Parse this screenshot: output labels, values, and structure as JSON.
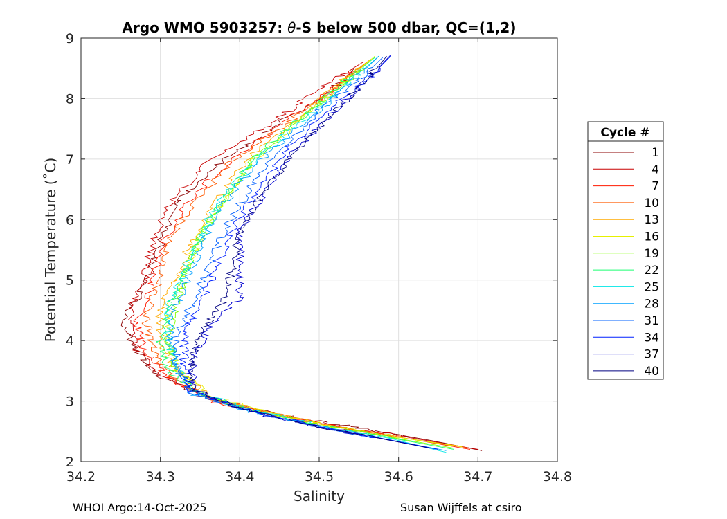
{
  "chart_data": {
    "type": "line",
    "title": {
      "prefix": "Argo WMO 5903257: ",
      "theta": "θ",
      "suffix": "-S below 500 dbar,  QC=(1,2)"
    },
    "xlabel": "Salinity",
    "ylabel": "Potential Temperature (˚C)",
    "xlim": [
      34.2,
      34.8
    ],
    "ylim": [
      2,
      9
    ],
    "xticks": [
      34.2,
      34.3,
      34.4,
      34.5,
      34.6,
      34.7,
      34.8
    ],
    "xtick_labels": [
      "34.2",
      "34.3",
      "34.4",
      "34.5",
      "34.6",
      "34.7",
      "34.8"
    ],
    "yticks": [
      2,
      3,
      4,
      5,
      6,
      7,
      8,
      9
    ],
    "ytick_labels": [
      "2",
      "3",
      "4",
      "5",
      "6",
      "7",
      "8",
      "9"
    ],
    "grid": true,
    "legend_title": "Cycle #",
    "legend_position": "right",
    "series": [
      {
        "name": "1",
        "color": "#8b0000",
        "points": [
          [
            34.705,
            2.18
          ],
          [
            34.64,
            2.35
          ],
          [
            34.55,
            2.55
          ],
          [
            34.46,
            2.75
          ],
          [
            34.38,
            2.98
          ],
          [
            34.3,
            3.4
          ],
          [
            34.27,
            3.8
          ],
          [
            34.25,
            4.3
          ],
          [
            34.28,
            4.9
          ],
          [
            34.3,
            5.6
          ],
          [
            34.32,
            6.3
          ],
          [
            34.37,
            6.9
          ],
          [
            34.45,
            7.6
          ],
          [
            34.52,
            8.2
          ],
          [
            34.565,
            8.65
          ]
        ]
      },
      {
        "name": "4",
        "color": "#c80000",
        "points": [
          [
            34.7,
            2.2
          ],
          [
            34.63,
            2.36
          ],
          [
            34.54,
            2.55
          ],
          [
            34.45,
            2.76
          ],
          [
            34.37,
            3.0
          ],
          [
            34.3,
            3.45
          ],
          [
            34.27,
            3.85
          ],
          [
            34.26,
            4.4
          ],
          [
            34.28,
            5.0
          ],
          [
            34.29,
            5.6
          ],
          [
            34.31,
            6.25
          ],
          [
            34.36,
            6.95
          ],
          [
            34.44,
            7.6
          ],
          [
            34.5,
            8.15
          ],
          [
            34.555,
            8.6
          ]
        ]
      },
      {
        "name": "7",
        "color": "#ff1a00",
        "points": [
          [
            34.69,
            2.2
          ],
          [
            34.62,
            2.36
          ],
          [
            34.53,
            2.56
          ],
          [
            34.44,
            2.78
          ],
          [
            34.36,
            3.02
          ],
          [
            34.31,
            3.4
          ],
          [
            34.28,
            3.8
          ],
          [
            34.27,
            4.3
          ],
          [
            34.29,
            4.9
          ],
          [
            34.3,
            5.5
          ],
          [
            34.33,
            6.2
          ],
          [
            34.38,
            6.9
          ],
          [
            34.45,
            7.55
          ],
          [
            34.51,
            8.1
          ],
          [
            34.56,
            8.6
          ]
        ]
      },
      {
        "name": "10",
        "color": "#ff5a00",
        "points": [
          [
            34.69,
            2.22
          ],
          [
            34.61,
            2.38
          ],
          [
            34.52,
            2.58
          ],
          [
            34.44,
            2.8
          ],
          [
            34.36,
            3.05
          ],
          [
            34.31,
            3.45
          ],
          [
            34.29,
            3.9
          ],
          [
            34.28,
            4.4
          ],
          [
            34.3,
            5.0
          ],
          [
            34.31,
            5.6
          ],
          [
            34.34,
            6.25
          ],
          [
            34.39,
            6.95
          ],
          [
            34.46,
            7.6
          ],
          [
            34.52,
            8.15
          ],
          [
            34.56,
            8.6
          ]
        ]
      },
      {
        "name": "13",
        "color": "#ffaa00",
        "points": [
          [
            34.68,
            2.25
          ],
          [
            34.6,
            2.4
          ],
          [
            34.51,
            2.6
          ],
          [
            34.43,
            2.82
          ],
          [
            34.36,
            3.08
          ],
          [
            34.32,
            3.5
          ],
          [
            34.3,
            3.95
          ],
          [
            34.3,
            4.5
          ],
          [
            34.32,
            5.05
          ],
          [
            34.34,
            5.65
          ],
          [
            34.37,
            6.3
          ],
          [
            34.41,
            7.0
          ],
          [
            34.47,
            7.65
          ],
          [
            34.52,
            8.2
          ],
          [
            34.565,
            8.65
          ]
        ]
      },
      {
        "name": "16",
        "color": "#e6f000",
        "points": [
          [
            34.68,
            2.24
          ],
          [
            34.6,
            2.4
          ],
          [
            34.51,
            2.61
          ],
          [
            34.43,
            2.83
          ],
          [
            34.36,
            3.1
          ],
          [
            34.32,
            3.55
          ],
          [
            34.31,
            4.0
          ],
          [
            34.31,
            4.5
          ],
          [
            34.33,
            5.1
          ],
          [
            34.35,
            5.7
          ],
          [
            34.38,
            6.35
          ],
          [
            34.42,
            7.0
          ],
          [
            34.48,
            7.7
          ],
          [
            34.53,
            8.25
          ],
          [
            34.57,
            8.7
          ]
        ]
      },
      {
        "name": "19",
        "color": "#80ff00",
        "points": [
          [
            34.67,
            2.22
          ],
          [
            34.59,
            2.4
          ],
          [
            34.5,
            2.61
          ],
          [
            34.42,
            2.84
          ],
          [
            34.35,
            3.12
          ],
          [
            34.32,
            3.55
          ],
          [
            34.31,
            4.05
          ],
          [
            34.32,
            4.55
          ],
          [
            34.33,
            5.1
          ],
          [
            34.35,
            5.7
          ],
          [
            34.38,
            6.35
          ],
          [
            34.42,
            7.05
          ],
          [
            34.48,
            7.7
          ],
          [
            34.53,
            8.25
          ],
          [
            34.57,
            8.68
          ]
        ]
      },
      {
        "name": "22",
        "color": "#1aff70",
        "points": [
          [
            34.67,
            2.2
          ],
          [
            34.59,
            2.39
          ],
          [
            34.5,
            2.6
          ],
          [
            34.42,
            2.83
          ],
          [
            34.35,
            3.1
          ],
          [
            34.31,
            3.5
          ],
          [
            34.3,
            4.0
          ],
          [
            34.31,
            4.55
          ],
          [
            34.33,
            5.1
          ],
          [
            34.35,
            5.7
          ],
          [
            34.38,
            6.35
          ],
          [
            34.42,
            7.05
          ],
          [
            34.48,
            7.7
          ],
          [
            34.53,
            8.25
          ],
          [
            34.57,
            8.68
          ]
        ]
      },
      {
        "name": "25",
        "color": "#00e6e6",
        "points": [
          [
            34.66,
            2.15
          ],
          [
            34.59,
            2.38
          ],
          [
            34.5,
            2.6
          ],
          [
            34.42,
            2.84
          ],
          [
            34.35,
            3.12
          ],
          [
            34.32,
            3.55
          ],
          [
            34.31,
            4.05
          ],
          [
            34.31,
            4.6
          ],
          [
            34.33,
            5.15
          ],
          [
            34.35,
            5.75
          ],
          [
            34.38,
            6.4
          ],
          [
            34.43,
            7.1
          ],
          [
            34.49,
            7.75
          ],
          [
            34.54,
            8.3
          ],
          [
            34.575,
            8.7
          ]
        ]
      },
      {
        "name": "28",
        "color": "#00a0ff",
        "points": [
          [
            34.66,
            2.18
          ],
          [
            34.58,
            2.38
          ],
          [
            34.49,
            2.6
          ],
          [
            34.41,
            2.84
          ],
          [
            34.34,
            3.12
          ],
          [
            34.32,
            3.55
          ],
          [
            34.31,
            4.05
          ],
          [
            34.32,
            4.6
          ],
          [
            34.34,
            5.2
          ],
          [
            34.36,
            5.8
          ],
          [
            34.39,
            6.45
          ],
          [
            34.44,
            7.15
          ],
          [
            34.5,
            7.8
          ],
          [
            34.545,
            8.32
          ],
          [
            34.575,
            8.7
          ]
        ]
      },
      {
        "name": "31",
        "color": "#0060ff",
        "points": [
          [
            34.65,
            2.2
          ],
          [
            34.58,
            2.38
          ],
          [
            34.49,
            2.6
          ],
          [
            34.41,
            2.85
          ],
          [
            34.34,
            3.14
          ],
          [
            34.32,
            3.6
          ],
          [
            34.32,
            4.1
          ],
          [
            34.34,
            4.6
          ],
          [
            34.36,
            5.2
          ],
          [
            34.38,
            5.8
          ],
          [
            34.41,
            6.45
          ],
          [
            34.45,
            7.15
          ],
          [
            34.5,
            7.8
          ],
          [
            34.55,
            8.3
          ],
          [
            34.58,
            8.68
          ]
        ]
      },
      {
        "name": "34",
        "color": "#0020ff",
        "points": [
          [
            34.65,
            2.2
          ],
          [
            34.58,
            2.38
          ],
          [
            34.49,
            2.6
          ],
          [
            34.41,
            2.86
          ],
          [
            34.34,
            3.15
          ],
          [
            34.33,
            3.6
          ],
          [
            34.33,
            4.1
          ],
          [
            34.35,
            4.6
          ],
          [
            34.37,
            5.2
          ],
          [
            34.39,
            5.8
          ],
          [
            34.42,
            6.45
          ],
          [
            34.46,
            7.15
          ],
          [
            34.51,
            7.8
          ],
          [
            34.56,
            8.3
          ],
          [
            34.59,
            8.7
          ]
        ]
      },
      {
        "name": "37",
        "color": "#0000d0",
        "points": [
          [
            34.64,
            2.22
          ],
          [
            34.57,
            2.4
          ],
          [
            34.48,
            2.62
          ],
          [
            34.4,
            2.88
          ],
          [
            34.34,
            3.2
          ],
          [
            34.34,
            3.65
          ],
          [
            34.36,
            4.2
          ],
          [
            34.4,
            4.7
          ],
          [
            34.4,
            5.2
          ],
          [
            34.4,
            5.8
          ],
          [
            34.43,
            6.45
          ],
          [
            34.47,
            7.15
          ],
          [
            34.52,
            7.8
          ],
          [
            34.56,
            8.3
          ],
          [
            34.59,
            8.72
          ]
        ]
      },
      {
        "name": "40",
        "color": "#000080",
        "points": [
          [
            34.64,
            2.22
          ],
          [
            34.57,
            2.4
          ],
          [
            34.48,
            2.62
          ],
          [
            34.4,
            2.88
          ],
          [
            34.34,
            3.2
          ],
          [
            34.34,
            3.65
          ],
          [
            34.35,
            4.15
          ],
          [
            34.38,
            4.65
          ],
          [
            34.39,
            5.2
          ],
          [
            34.4,
            5.8
          ],
          [
            34.43,
            6.45
          ],
          [
            34.47,
            7.15
          ],
          [
            34.52,
            7.8
          ],
          [
            34.56,
            8.3
          ],
          [
            34.585,
            8.7
          ]
        ]
      }
    ]
  },
  "footer": {
    "left": "WHOI Argo:14-Oct-2025",
    "right": "Susan Wijffels at csiro"
  }
}
